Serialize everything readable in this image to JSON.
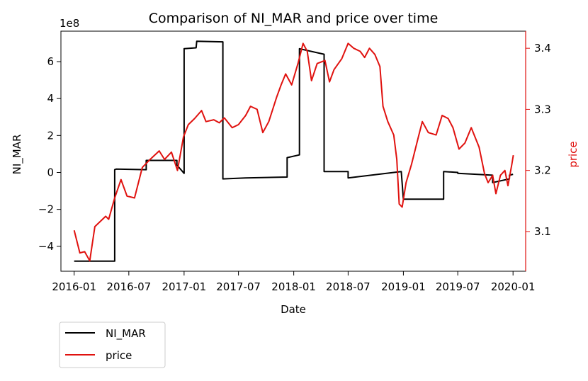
{
  "chart_data": {
    "type": "line",
    "title": "Comparison of NI_MAR and price over time",
    "xlabel": "Date",
    "ylabel": "NI_MAR",
    "y2label": "price",
    "y_offset_label": "1e8",
    "x_ticks": [
      "2016-01",
      "2016-07",
      "2017-01",
      "2017-07",
      "2018-01",
      "2018-07",
      "2019-01",
      "2019-07",
      "2020-01"
    ],
    "y_ticks": [
      "−4",
      "−2",
      "0",
      "2",
      "4",
      "6"
    ],
    "y2_ticks": [
      "3.1",
      "3.2",
      "3.3",
      "3.4"
    ],
    "xlim": [
      "2015-11-18",
      "2020-02-12"
    ],
    "ylim": [
      -5.35,
      7.65
    ],
    "ylim_units": "1e8",
    "y2lim": [
      3.035,
      3.428
    ],
    "grid": false,
    "legend_placement": "below-left",
    "colors": {
      "NI_MAR": "#000000",
      "price": "#e0120f",
      "price_axis": "#e0120f"
    },
    "legend": [
      "NI_MAR",
      "price"
    ],
    "series": [
      {
        "name": "NI_MAR",
        "axis": "left",
        "color": "#000000",
        "points": [
          [
            "2016-01-01",
            -4.8
          ],
          [
            "2016-05-15",
            -4.8
          ],
          [
            "2016-05-15",
            0.15
          ],
          [
            "2016-05-20",
            0.18
          ],
          [
            "2016-08-28",
            0.15
          ],
          [
            "2016-08-28",
            0.65
          ],
          [
            "2016-12-08",
            0.65
          ],
          [
            "2016-12-08",
            0.4
          ],
          [
            "2017-01-01",
            -0.05
          ],
          [
            "2017-01-01",
            6.7
          ],
          [
            "2017-02-10",
            6.75
          ],
          [
            "2017-02-12",
            7.1
          ],
          [
            "2017-05-10",
            7.07
          ],
          [
            "2017-05-10",
            -0.35
          ],
          [
            "2017-07-25",
            -0.3
          ],
          [
            "2017-12-10",
            -0.25
          ],
          [
            "2017-12-10",
            0.8
          ],
          [
            "2018-01-20",
            0.95
          ],
          [
            "2018-01-20",
            6.7
          ],
          [
            "2018-04-12",
            6.4
          ],
          [
            "2018-04-12",
            0.05
          ],
          [
            "2018-07-01",
            0.05
          ],
          [
            "2018-07-01",
            -0.3
          ],
          [
            "2018-12-25",
            0.05
          ],
          [
            "2019-01-01",
            -1.45
          ],
          [
            "2019-05-15",
            -1.45
          ],
          [
            "2019-05-15",
            0.05
          ],
          [
            "2019-07-01",
            0.0
          ],
          [
            "2019-07-01",
            -0.05
          ],
          [
            "2019-10-25",
            -0.15
          ],
          [
            "2019-10-25",
            -0.55
          ],
          [
            "2019-12-20",
            -0.35
          ],
          [
            "2019-12-20",
            -0.15
          ],
          [
            "2020-01-01",
            -0.1
          ]
        ]
      },
      {
        "name": "price",
        "axis": "right",
        "color": "#e0120f",
        "points": [
          [
            "2016-01-01",
            3.102
          ],
          [
            "2016-01-20",
            3.065
          ],
          [
            "2016-02-05",
            3.067
          ],
          [
            "2016-02-22",
            3.052
          ],
          [
            "2016-03-10",
            3.108
          ],
          [
            "2016-04-15",
            3.125
          ],
          [
            "2016-04-25",
            3.12
          ],
          [
            "2016-05-15",
            3.155
          ],
          [
            "2016-06-05",
            3.185
          ],
          [
            "2016-06-25",
            3.158
          ],
          [
            "2016-07-20",
            3.155
          ],
          [
            "2016-08-15",
            3.205
          ],
          [
            "2016-09-10",
            3.218
          ],
          [
            "2016-10-10",
            3.232
          ],
          [
            "2016-10-28",
            3.218
          ],
          [
            "2016-11-20",
            3.23
          ],
          [
            "2016-12-10",
            3.2
          ],
          [
            "2016-12-30",
            3.255
          ],
          [
            "2017-01-15",
            3.275
          ],
          [
            "2017-02-05",
            3.285
          ],
          [
            "2017-02-28",
            3.298
          ],
          [
            "2017-03-15",
            3.28
          ],
          [
            "2017-04-10",
            3.283
          ],
          [
            "2017-04-28",
            3.278
          ],
          [
            "2017-05-15",
            3.286
          ],
          [
            "2017-06-10",
            3.27
          ],
          [
            "2017-07-01",
            3.275
          ],
          [
            "2017-07-25",
            3.29
          ],
          [
            "2017-08-10",
            3.305
          ],
          [
            "2017-09-01",
            3.3
          ],
          [
            "2017-09-20",
            3.262
          ],
          [
            "2017-10-10",
            3.28
          ],
          [
            "2017-11-05",
            3.32
          ],
          [
            "2017-11-20",
            3.34
          ],
          [
            "2017-12-05",
            3.358
          ],
          [
            "2017-12-25",
            3.34
          ],
          [
            "2018-01-15",
            3.375
          ],
          [
            "2018-02-01",
            3.408
          ],
          [
            "2018-02-15",
            3.395
          ],
          [
            "2018-03-01",
            3.347
          ],
          [
            "2018-03-20",
            3.375
          ],
          [
            "2018-04-15",
            3.38
          ],
          [
            "2018-04-30",
            3.345
          ],
          [
            "2018-05-15",
            3.365
          ],
          [
            "2018-06-10",
            3.383
          ],
          [
            "2018-07-01",
            3.408
          ],
          [
            "2018-07-20",
            3.4
          ],
          [
            "2018-08-10",
            3.395
          ],
          [
            "2018-08-25",
            3.385
          ],
          [
            "2018-09-10",
            3.4
          ],
          [
            "2018-09-28",
            3.39
          ],
          [
            "2018-10-15",
            3.37
          ],
          [
            "2018-10-25",
            3.305
          ],
          [
            "2018-11-10",
            3.28
          ],
          [
            "2018-11-30",
            3.258
          ],
          [
            "2018-12-10",
            3.218
          ],
          [
            "2018-12-18",
            3.145
          ],
          [
            "2018-12-28",
            3.14
          ],
          [
            "2019-01-10",
            3.18
          ],
          [
            "2019-01-28",
            3.21
          ],
          [
            "2019-02-20",
            3.255
          ],
          [
            "2019-03-05",
            3.28
          ],
          [
            "2019-03-25",
            3.262
          ],
          [
            "2019-04-20",
            3.258
          ],
          [
            "2019-05-10",
            3.29
          ],
          [
            "2019-05-30",
            3.285
          ],
          [
            "2019-06-15",
            3.27
          ],
          [
            "2019-07-05",
            3.235
          ],
          [
            "2019-07-25",
            3.245
          ],
          [
            "2019-08-15",
            3.27
          ],
          [
            "2019-09-10",
            3.238
          ],
          [
            "2019-09-28",
            3.195
          ],
          [
            "2019-10-10",
            3.18
          ],
          [
            "2019-10-25",
            3.192
          ],
          [
            "2019-11-05",
            3.162
          ],
          [
            "2019-11-20",
            3.192
          ],
          [
            "2019-12-05",
            3.2
          ],
          [
            "2019-12-15",
            3.175
          ],
          [
            "2019-12-28",
            3.21
          ],
          [
            "2020-01-02",
            3.225
          ]
        ]
      }
    ]
  }
}
